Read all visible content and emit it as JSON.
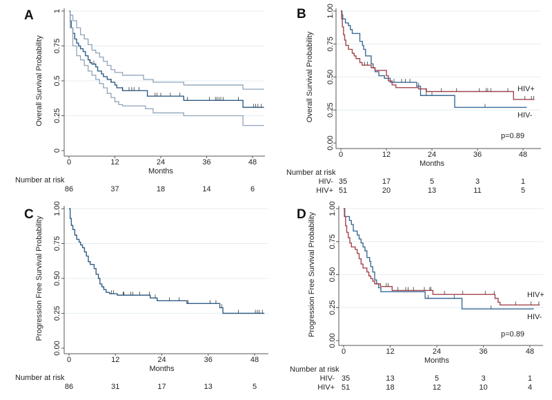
{
  "colors": {
    "overall": "#2f5d86",
    "ci": "#8fa3ba",
    "hiv_neg": "#3a6a96",
    "hiv_pos": "#a3424b",
    "grid": "#e4eef2",
    "axis": "#555555"
  },
  "chart_data": [
    {
      "panel": "A",
      "type": "line",
      "step": true,
      "ylabel": "Overall Survival Probability",
      "xlabel": "Months",
      "xlim": [
        0,
        50
      ],
      "ylim": [
        0,
        1
      ],
      "xticks": [
        0,
        12,
        24,
        36,
        48
      ],
      "xtick_labels": [
        "0",
        "12",
        "24",
        "36",
        "48"
      ],
      "yticks": [
        0,
        0.25,
        0.5,
        0.75,
        1
      ],
      "ytick_labels": [
        "0",
        "0.25",
        "0.5",
        "0.75",
        "1"
      ],
      "grid": true,
      "series": [
        {
          "name": "Overall",
          "color_key": "overall",
          "end": 51,
          "steps": [
            [
              0,
              1
            ],
            [
              0.3,
              0.93
            ],
            [
              0.6,
              0.88
            ],
            [
              1,
              0.84
            ],
            [
              1.5,
              0.8
            ],
            [
              2,
              0.77
            ],
            [
              2.5,
              0.75
            ],
            [
              3,
              0.73
            ],
            [
              3.7,
              0.71
            ],
            [
              4.3,
              0.68
            ],
            [
              5,
              0.65
            ],
            [
              5.5,
              0.63
            ],
            [
              6,
              0.62
            ],
            [
              7,
              0.6
            ],
            [
              7.5,
              0.57
            ],
            [
              8.5,
              0.55
            ],
            [
              9,
              0.53
            ],
            [
              10,
              0.51
            ],
            [
              11,
              0.49
            ],
            [
              12,
              0.47
            ],
            [
              12.5,
              0.45
            ],
            [
              14,
              0.43
            ],
            [
              20.5,
              0.39
            ],
            [
              30,
              0.36
            ],
            [
              45.5,
              0.31
            ]
          ],
          "censored": [
            5.5,
            6.5,
            11,
            14,
            15.7,
            16.4,
            17,
            18.3,
            22.5,
            23,
            24,
            26.5,
            29,
            31,
            36.7,
            38.3,
            38.7,
            39.2,
            39.7,
            40.3,
            44.3,
            48.3,
            48.8,
            49.4,
            50.3
          ]
        },
        {
          "name": "Upper 95% CI",
          "color_key": "ci",
          "end": 51,
          "steps": [
            [
              0,
              1
            ],
            [
              0.3,
              0.97
            ],
            [
              1,
              0.93
            ],
            [
              2,
              0.88
            ],
            [
              3,
              0.83
            ],
            [
              4,
              0.8
            ],
            [
              5,
              0.76
            ],
            [
              6,
              0.72
            ],
            [
              7,
              0.7
            ],
            [
              8,
              0.67
            ],
            [
              9,
              0.64
            ],
            [
              10,
              0.61
            ],
            [
              11,
              0.58
            ],
            [
              12,
              0.56
            ],
            [
              14,
              0.54
            ],
            [
              19.5,
              0.51
            ],
            [
              22,
              0.49
            ],
            [
              30,
              0.47
            ],
            [
              45.5,
              0.44
            ]
          ],
          "censored": []
        },
        {
          "name": "Lower 95% CI",
          "color_key": "ci",
          "end": 51,
          "steps": [
            [
              0,
              1
            ],
            [
              0.3,
              0.88
            ],
            [
              1,
              0.75
            ],
            [
              2,
              0.68
            ],
            [
              3,
              0.65
            ],
            [
              4,
              0.61
            ],
            [
              5,
              0.57
            ],
            [
              6,
              0.54
            ],
            [
              7,
              0.51
            ],
            [
              8,
              0.48
            ],
            [
              9,
              0.45
            ],
            [
              10,
              0.41
            ],
            [
              11,
              0.38
            ],
            [
              12,
              0.35
            ],
            [
              13,
              0.33
            ],
            [
              14,
              0.32
            ],
            [
              20,
              0.3
            ],
            [
              22,
              0.27
            ],
            [
              30,
              0.25
            ],
            [
              45.5,
              0.18
            ]
          ],
          "censored": []
        }
      ],
      "number_at_risk": {
        "title": "Number at risk",
        "rows": [
          {
            "label": "",
            "values": [
              "86",
              "37",
              "18",
              "14",
              "6"
            ]
          }
        ]
      }
    },
    {
      "panel": "B",
      "type": "line",
      "step": true,
      "ylabel": "Overall Survival Probability",
      "xlabel": "Months",
      "xlim": [
        0,
        50
      ],
      "ylim": [
        0,
        1
      ],
      "xticks": [
        0,
        12,
        24,
        36,
        48
      ],
      "xtick_labels": [
        "0",
        "12",
        "24",
        "36",
        "48"
      ],
      "yticks": [
        0,
        0.25,
        0.5,
        0.75,
        1
      ],
      "ytick_labels": [
        "0.00",
        "0.25",
        "0.50",
        "0.75",
        "1.00"
      ],
      "grid": true,
      "series": [
        {
          "name": "HIV-",
          "color_key": "hiv_neg",
          "end": 49,
          "steps": [
            [
              0,
              1
            ],
            [
              0.3,
              0.97
            ],
            [
              0.5,
              0.94
            ],
            [
              1.2,
              0.91
            ],
            [
              2,
              0.89
            ],
            [
              2.5,
              0.86
            ],
            [
              3,
              0.83
            ],
            [
              5,
              0.77
            ],
            [
              5.7,
              0.74
            ],
            [
              6,
              0.71
            ],
            [
              6.5,
              0.66
            ],
            [
              8,
              0.6
            ],
            [
              8.5,
              0.57
            ],
            [
              9,
              0.54
            ],
            [
              10,
              0.51
            ],
            [
              11.5,
              0.49
            ],
            [
              13,
              0.46
            ],
            [
              20,
              0.43
            ],
            [
              21,
              0.36
            ],
            [
              30,
              0.27
            ]
          ],
          "censored": [
            14,
            16,
            17,
            18.2,
            20.5,
            22.5,
            24,
            38
          ]
        },
        {
          "name": "HIV+",
          "color_key": "hiv_pos",
          "end": 51,
          "steps": [
            [
              0,
              1
            ],
            [
              0.2,
              0.94
            ],
            [
              0.4,
              0.88
            ],
            [
              0.7,
              0.82
            ],
            [
              1,
              0.78
            ],
            [
              1.3,
              0.74
            ],
            [
              2,
              0.71
            ],
            [
              3,
              0.68
            ],
            [
              3.5,
              0.66
            ],
            [
              4,
              0.64
            ],
            [
              5,
              0.61
            ],
            [
              5.6,
              0.59
            ],
            [
              8,
              0.57
            ],
            [
              9,
              0.55
            ],
            [
              12,
              0.51
            ],
            [
              12.5,
              0.47
            ],
            [
              13.5,
              0.44
            ],
            [
              14.5,
              0.42
            ],
            [
              20.5,
              0.41
            ],
            [
              22.5,
              0.39
            ],
            [
              45.5,
              0.33
            ]
          ],
          "censored": [
            6.3,
            7,
            22.5,
            26.5,
            30.5,
            36.5,
            38.3,
            38.7,
            39.5,
            44,
            48.5,
            50.2,
            50.8
          ]
        }
      ],
      "annotations": {
        "hiv_pos": "HIV+",
        "hiv_neg": "HIV-",
        "pvalue": "p=0.89"
      },
      "number_at_risk": {
        "title": "Number at risk",
        "rows": [
          {
            "label": "HIV-",
            "values": [
              "35",
              "17",
              "5",
              "3",
              "1"
            ]
          },
          {
            "label": "HIV+",
            "values": [
              "51",
              "20",
              "13",
              "11",
              "5"
            ]
          }
        ]
      }
    },
    {
      "panel": "C",
      "type": "line",
      "step": true,
      "ylabel": "Progression Free Survival Probability",
      "xlabel": "Months",
      "xlim": [
        0,
        50
      ],
      "ylim": [
        0,
        1
      ],
      "xticks": [
        0,
        12,
        24,
        36,
        48
      ],
      "xtick_labels": [
        "0",
        "12",
        "24",
        "36",
        "48"
      ],
      "yticks": [
        0,
        0.25,
        0.5,
        0.75,
        1
      ],
      "ytick_labels": [
        "0.00",
        "0.25",
        "0.50",
        "0.75",
        "1.00"
      ],
      "grid": true,
      "series": [
        {
          "name": "Overall",
          "color_key": "overall",
          "end": 50.5,
          "steps": [
            [
              0,
              1
            ],
            [
              0.3,
              0.93
            ],
            [
              0.6,
              0.88
            ],
            [
              1,
              0.85
            ],
            [
              1.5,
              0.81
            ],
            [
              2,
              0.78
            ],
            [
              2.6,
              0.76
            ],
            [
              3,
              0.74
            ],
            [
              3.5,
              0.72
            ],
            [
              4,
              0.69
            ],
            [
              4.5,
              0.66
            ],
            [
              5,
              0.62
            ],
            [
              5.5,
              0.6
            ],
            [
              6.5,
              0.57
            ],
            [
              7,
              0.53
            ],
            [
              7.6,
              0.5
            ],
            [
              8,
              0.46
            ],
            [
              8.5,
              0.44
            ],
            [
              9,
              0.42
            ],
            [
              9.6,
              0.4
            ],
            [
              10.5,
              0.39
            ],
            [
              12.5,
              0.38
            ],
            [
              21,
              0.36
            ],
            [
              22.8,
              0.34
            ],
            [
              30.5,
              0.32
            ],
            [
              39,
              0.29
            ],
            [
              39.8,
              0.25
            ]
          ],
          "censored": [
            11,
            11.5,
            14,
            14.2,
            16,
            16.5,
            18.3,
            20.8,
            22.3,
            26,
            28.5,
            30.8,
            36.5,
            38,
            39.5,
            43.8,
            48.2,
            48.7,
            49.2,
            50
          ]
        }
      ],
      "number_at_risk": {
        "title": "Number at risk",
        "rows": [
          {
            "label": "",
            "values": [
              "86",
              "31",
              "17",
              "13",
              "5"
            ]
          }
        ]
      }
    },
    {
      "panel": "D",
      "type": "line",
      "step": true,
      "ylabel": "Progression Free Survival Probability",
      "xlabel": "Months",
      "xlim": [
        0,
        50
      ],
      "ylim": [
        0,
        1
      ],
      "xticks": [
        0,
        12,
        24,
        36,
        48
      ],
      "xtick_labels": [
        "0",
        "12",
        "24",
        "36",
        "48"
      ],
      "yticks": [
        0,
        0.25,
        0.5,
        0.75,
        1
      ],
      "ytick_labels": [
        "0.00",
        "0.25",
        "0.50",
        "0.75",
        "1.00"
      ],
      "grid": true,
      "series": [
        {
          "name": "HIV-",
          "color_key": "hiv_neg",
          "end": 49,
          "steps": [
            [
              0,
              1
            ],
            [
              0.3,
              0.94
            ],
            [
              1.5,
              0.91
            ],
            [
              2,
              0.88
            ],
            [
              2.5,
              0.83
            ],
            [
              3.5,
              0.8
            ],
            [
              4,
              0.77
            ],
            [
              4.5,
              0.74
            ],
            [
              5,
              0.71
            ],
            [
              5.5,
              0.68
            ],
            [
              6,
              0.63
            ],
            [
              6.7,
              0.6
            ],
            [
              7,
              0.56
            ],
            [
              7.5,
              0.52
            ],
            [
              8,
              0.46
            ],
            [
              8.5,
              0.43
            ],
            [
              9,
              0.4
            ],
            [
              9.6,
              0.37
            ],
            [
              21,
              0.32
            ],
            [
              30.5,
              0.24
            ]
          ],
          "censored": [
            21.8,
            28.5,
            38
          ]
        },
        {
          "name": "HIV+",
          "color_key": "hiv_pos",
          "end": 50.5,
          "steps": [
            [
              0,
              1
            ],
            [
              0.2,
              0.94
            ],
            [
              0.5,
              0.87
            ],
            [
              0.8,
              0.82
            ],
            [
              1.2,
              0.78
            ],
            [
              1.6,
              0.74
            ],
            [
              2,
              0.71
            ],
            [
              3,
              0.69
            ],
            [
              3.5,
              0.66
            ],
            [
              4,
              0.62
            ],
            [
              4.5,
              0.58
            ],
            [
              5,
              0.55
            ],
            [
              6,
              0.52
            ],
            [
              6.5,
              0.49
            ],
            [
              7,
              0.47
            ],
            [
              7.5,
              0.45
            ],
            [
              8,
              0.43
            ],
            [
              9.5,
              0.41
            ],
            [
              12.5,
              0.38
            ],
            [
              23,
              0.35
            ],
            [
              39,
              0.32
            ],
            [
              39.8,
              0.29
            ],
            [
              40.3,
              0.27
            ]
          ],
          "censored": [
            11,
            11.5,
            14,
            16,
            16.6,
            18,
            20.8,
            22.2,
            22.5,
            26,
            30.7,
            36.5,
            38.8,
            44.3,
            48.3,
            50.3
          ]
        }
      ],
      "annotations": {
        "hiv_pos": "HIV+",
        "hiv_neg": "HIV-",
        "pvalue": "p=0.89"
      },
      "number_at_risk": {
        "title": "Number at risk",
        "rows": [
          {
            "label": "HIV-",
            "values": [
              "35",
              "13",
              "5",
              "3",
              "1"
            ]
          },
          {
            "label": "HIV+",
            "values": [
              "51",
              "18",
              "12",
              "10",
              "4"
            ]
          }
        ]
      }
    }
  ]
}
